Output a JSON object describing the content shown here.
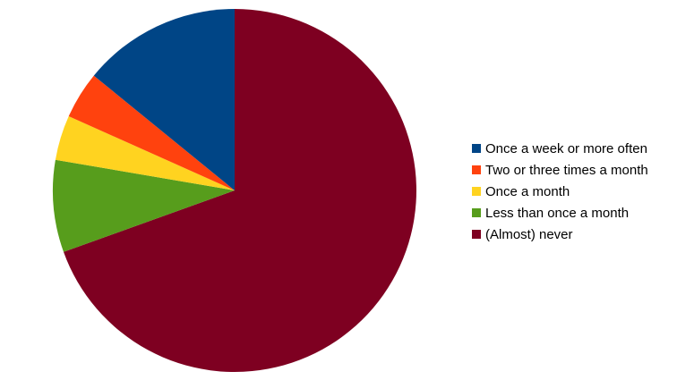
{
  "chart_data": {
    "type": "pie",
    "title": "",
    "legend_position": "right",
    "start_angle_deg": 0,
    "direction": "clockwise",
    "slices": [
      {
        "label": "(Almost) never",
        "value": 69.5,
        "color": "#7e0021"
      },
      {
        "label": "Less than once a month",
        "value": 8.2,
        "color": "#579d1c"
      },
      {
        "label": "Once a month",
        "value": 4.0,
        "color": "#ffd320"
      },
      {
        "label": "Two or three times a month",
        "value": 4.2,
        "color": "#ff420e"
      },
      {
        "label": "Once a week or more often",
        "value": 14.1,
        "color": "#004586"
      }
    ],
    "legend_order": [
      "Once a week or more often",
      "Two or three times a month",
      "Once a month",
      "Less than once a month",
      "(Almost) never"
    ]
  }
}
